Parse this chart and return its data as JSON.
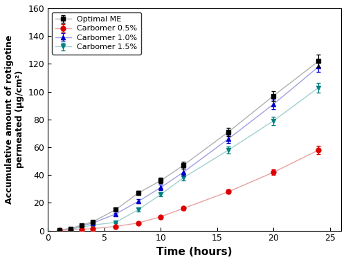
{
  "time": [
    1,
    2,
    3,
    4,
    6,
    8,
    10,
    12,
    16,
    20,
    24
  ],
  "optimal_me": [
    0.5,
    1.5,
    4.0,
    6.5,
    15.0,
    27.0,
    36.0,
    47.0,
    71.0,
    97.0,
    122.0
  ],
  "optimal_me_err": [
    0.3,
    0.4,
    0.5,
    0.6,
    1.0,
    1.5,
    2.0,
    2.5,
    3.0,
    3.5,
    4.5
  ],
  "carbomer_05": [
    0.2,
    0.5,
    1.0,
    1.5,
    3.0,
    5.5,
    10.0,
    16.0,
    28.0,
    42.0,
    58.0
  ],
  "carbomer_05_err": [
    0.2,
    0.2,
    0.3,
    0.3,
    0.5,
    0.7,
    1.0,
    1.2,
    1.5,
    2.0,
    3.0
  ],
  "carbomer_10": [
    0.5,
    1.5,
    3.5,
    5.5,
    12.0,
    21.0,
    31.0,
    42.0,
    66.0,
    91.0,
    118.0
  ],
  "carbomer_10_err": [
    0.3,
    0.4,
    0.5,
    0.6,
    1.0,
    1.5,
    2.0,
    2.5,
    3.0,
    3.5,
    4.0
  ],
  "carbomer_15": [
    0.3,
    1.0,
    2.5,
    4.0,
    6.0,
    15.0,
    26.0,
    38.0,
    58.0,
    79.0,
    103.0
  ],
  "carbomer_15_err": [
    0.2,
    0.3,
    0.4,
    0.5,
    0.8,
    1.2,
    1.5,
    2.0,
    2.5,
    3.0,
    3.5
  ],
  "xlabel": "Time (hours)",
  "ylabel": "Accumulative amount of rotigotine\npermeated (μg/cm²)",
  "ylim": [
    0,
    160
  ],
  "xlim": [
    0,
    26
  ],
  "xticks": [
    0,
    5,
    10,
    15,
    20,
    25
  ],
  "yticks": [
    0,
    20,
    40,
    60,
    80,
    100,
    120,
    140,
    160
  ],
  "legend_labels": [
    "Optimal ME",
    "Carbomer 0.5%",
    "Carbomer 1.0%",
    "Carbomer 1.5%"
  ],
  "line_colors": {
    "optimal_me": "#b0b0b0",
    "carbomer_05": "#e8a0a0",
    "carbomer_10": "#a0a0e0",
    "carbomer_15": "#a0d0d0"
  },
  "marker_colors": {
    "optimal_me": "#000000",
    "carbomer_05": "#dd0000",
    "carbomer_10": "#0000cc",
    "carbomer_15": "#008080"
  },
  "markers": {
    "optimal_me": "s",
    "carbomer_05": "o",
    "carbomer_10": "^",
    "carbomer_15": "v"
  }
}
